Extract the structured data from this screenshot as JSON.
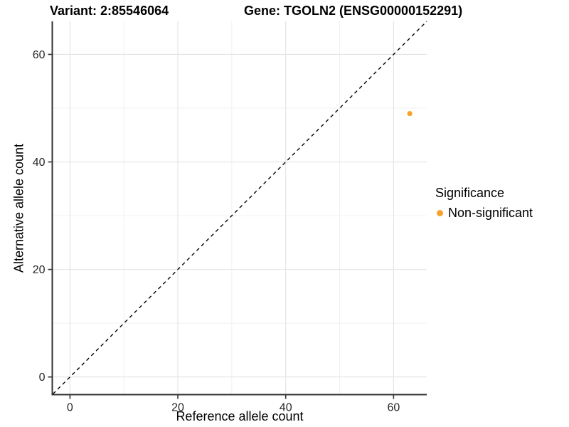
{
  "figure": {
    "variant_title": "Variant: 2:85546064",
    "gene_title": "Gene: TGOLN2 (ENSG00000152291)"
  },
  "chart_data": {
    "type": "scatter",
    "xlabel": "Reference allele count",
    "ylabel": "Alternative allele count",
    "xlim": [
      -3.15,
      66.15
    ],
    "ylim": [
      -3.15,
      66.15
    ],
    "x_ticks": [
      0,
      20,
      40,
      60
    ],
    "y_ticks": [
      0,
      20,
      40,
      60
    ],
    "x_minor_ticks": [
      10,
      30,
      50
    ],
    "y_minor_ticks": [
      10,
      30,
      50
    ],
    "grid": "major+minor",
    "identity_line": {
      "slope": 1,
      "intercept": 0,
      "style": "dashed",
      "color": "#000000"
    },
    "series": [
      {
        "name": "Non-significant",
        "color": "#F9A22B",
        "points": [
          {
            "x": 63,
            "y": 49
          }
        ]
      }
    ],
    "legend": {
      "title": "Significance",
      "position": "right",
      "items": [
        {
          "label": "Non-significant",
          "color": "#F9A22B"
        }
      ]
    }
  }
}
